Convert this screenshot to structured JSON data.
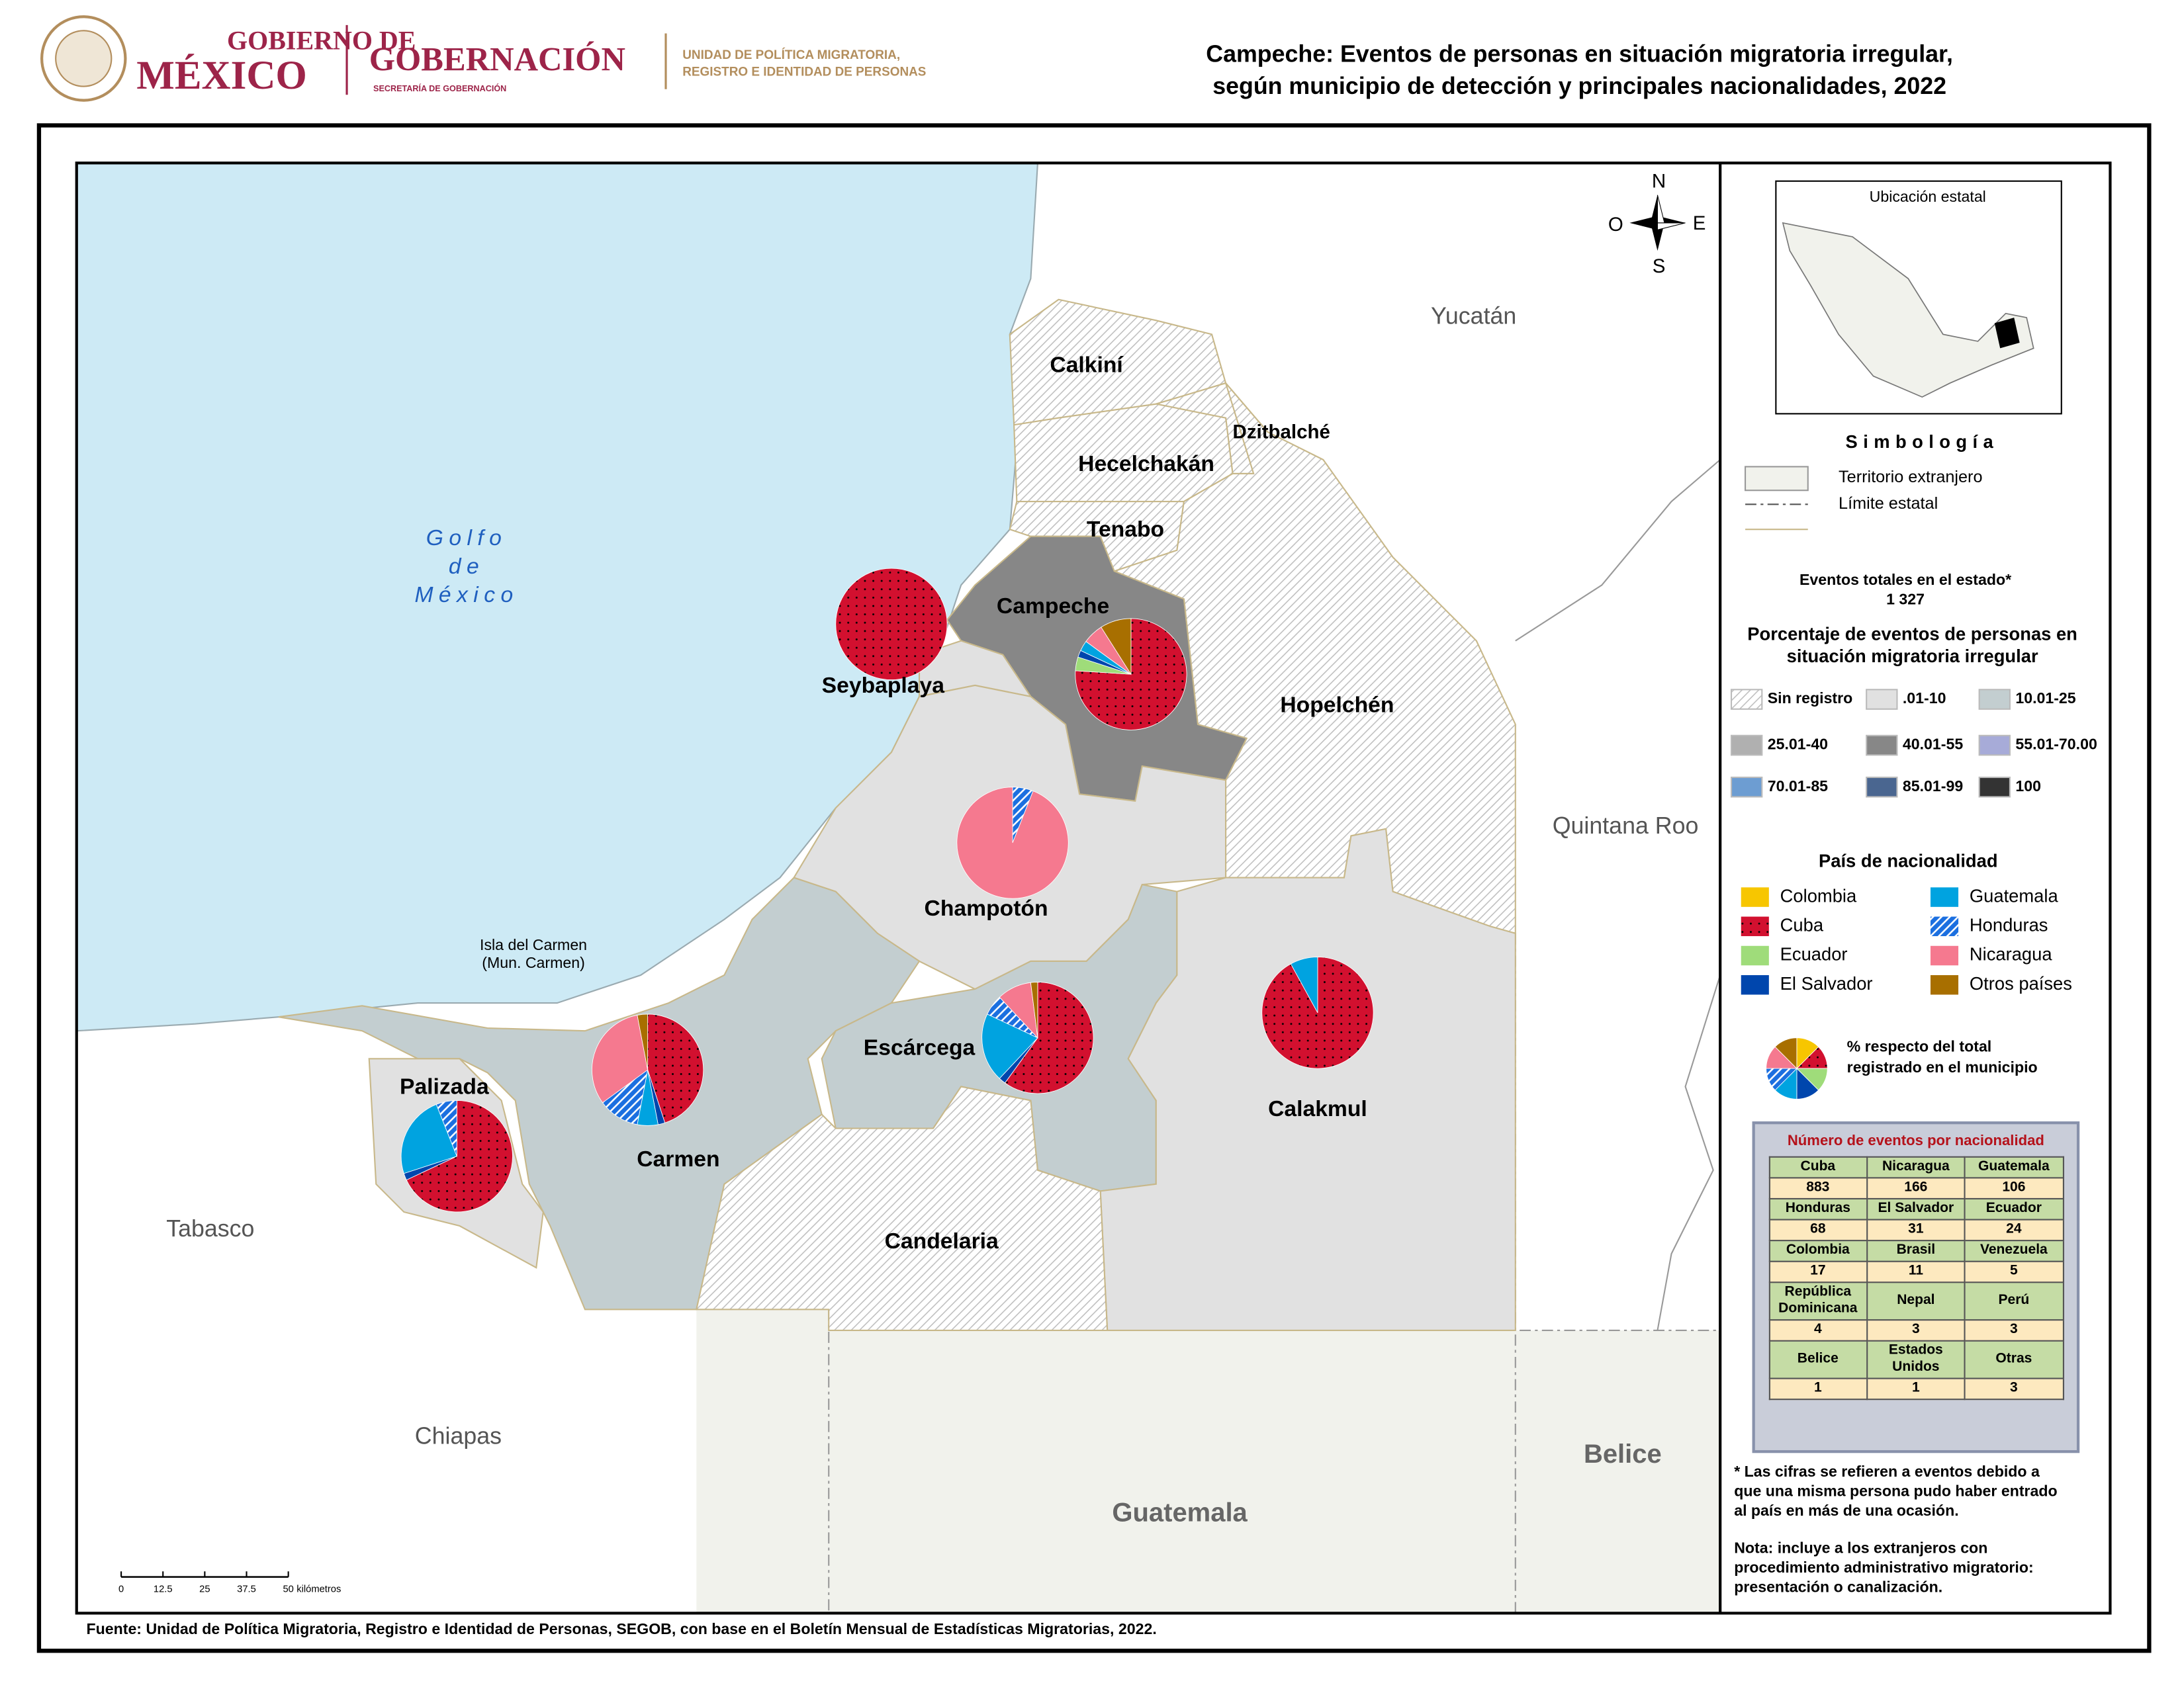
{
  "header": {
    "gov_line1": "GOBIERNO DE",
    "gov_line2": "MÉXICO",
    "ministry": "GOBERNACIÓN",
    "ministry_sub": "SECRETARÍA DE GOBERNACIÓN",
    "unit_line1": "UNIDAD DE POLÍTICA MIGRATORIA,",
    "unit_line2": "REGISTRO E IDENTIDAD DE PERSONAS",
    "title_line1": "Campeche: Eventos de personas en situación migratoria irregular,",
    "title_line2": "según municipio de detección y principales nacionalidades, 2022"
  },
  "map": {
    "sea_label": [
      "Golfo",
      "de",
      "México"
    ],
    "neighbors": [
      "Yucatán",
      "Quintana Roo",
      "Tabasco",
      "Chiapas",
      "Guatemala",
      "Belice"
    ],
    "island_label": [
      "Isla del Carmen",
      "(Mun. Carmen)"
    ],
    "compass": {
      "n": "N",
      "s": "S",
      "e": "E",
      "w": "O"
    },
    "scale": {
      "ticks": [
        0,
        12.5,
        25,
        37.5,
        50
      ],
      "unit": "kilómetros"
    },
    "municipalities": [
      {
        "name": "Calkiní",
        "class": "Sin registro"
      },
      {
        "name": "Dzitbalché",
        "class": "Sin registro"
      },
      {
        "name": "Hecelchakán",
        "class": "Sin registro"
      },
      {
        "name": "Tenabo",
        "class": "Sin registro"
      },
      {
        "name": "Hopelchén",
        "class": "Sin registro"
      },
      {
        "name": "Campeche",
        "class": "40.01-55",
        "pie": [
          0,
          76,
          4,
          2,
          3,
          0,
          6,
          9
        ]
      },
      {
        "name": "Seybaplaya",
        "class": ".01-10",
        "pie": [
          0,
          100,
          0,
          0,
          0,
          0,
          0,
          0
        ]
      },
      {
        "name": "Champotón",
        "class": ".01-10",
        "pie": [
          0,
          0,
          0,
          0,
          0,
          6,
          94,
          0
        ]
      },
      {
        "name": "Carmen",
        "class": "10.01-25",
        "pie": [
          0,
          45,
          0,
          2,
          6,
          12,
          32,
          3
        ]
      },
      {
        "name": "Palizada",
        "class": ".01-10",
        "pie": [
          0,
          68,
          0,
          2,
          24,
          6,
          0,
          0
        ]
      },
      {
        "name": "Escárcega",
        "class": "10.01-25",
        "pie": [
          0,
          60,
          0,
          2,
          20,
          6,
          10,
          2
        ]
      },
      {
        "name": "Calakmul",
        "class": ".01-10",
        "pie": [
          0,
          92,
          0,
          0,
          8,
          0,
          0,
          0
        ]
      },
      {
        "name": "Candelaria",
        "class": "Sin registro"
      }
    ]
  },
  "legend": {
    "inset_title": "Ubicación estatal",
    "symbology_title": "Simbología",
    "foreign": "Territorio extranjero",
    "state_limit": "Límite estatal",
    "total_label": "Eventos totales en el estado*",
    "total_value": "1 327",
    "classes_title": [
      "Porcentaje de eventos de personas en",
      "situación migratoria irregular"
    ],
    "classes": [
      {
        "label": "Sin registro",
        "pattern": "hatch",
        "color": "#bdbdbd"
      },
      {
        "label": ".01-10",
        "color": "#e1e1e1"
      },
      {
        "label": "10.01-25",
        "color": "#c3ced0"
      },
      {
        "label": "25.01-40",
        "color": "#b0b0b0"
      },
      {
        "label": "40.01-55",
        "color": "#878787"
      },
      {
        "label": "55.01-70.00",
        "color": "#a7abd8"
      },
      {
        "label": "70.01-85",
        "color": "#6d9dd2"
      },
      {
        "label": "85.01-99",
        "color": "#4a6690"
      },
      {
        "label": "100",
        "color": "#333333"
      }
    ],
    "nationality_title": "País de nacionalidad",
    "nationalities": [
      {
        "name": "Colombia",
        "color": "#f7c600"
      },
      {
        "name": "Cuba",
        "color": "#d2102f",
        "pattern": "dots"
      },
      {
        "name": "Ecuador",
        "color": "#9fdc7a"
      },
      {
        "name": "El Salvador",
        "color": "#0046ad"
      },
      {
        "name": "Guatemala",
        "color": "#00a3e0"
      },
      {
        "name": "Honduras",
        "color": "#1b6fe0",
        "pattern": "stripes"
      },
      {
        "name": "Nicaragua",
        "color": "#f5798f"
      },
      {
        "name": "Otros países",
        "color": "#a86f00"
      }
    ],
    "pie_note": [
      "% respecto del total",
      "registrado en el municipio"
    ]
  },
  "table": {
    "title": "Número de eventos por nacionalidad",
    "rows": [
      [
        "Cuba",
        "Nicaragua",
        "Guatemala"
      ],
      [
        883,
        166,
        106
      ],
      [
        "Honduras",
        "El Salvador",
        "Ecuador"
      ],
      [
        68,
        31,
        24
      ],
      [
        "Colombia",
        "Brasil",
        "Venezuela"
      ],
      [
        17,
        11,
        5
      ],
      [
        "República Dominicana",
        "Nepal",
        "Perú"
      ],
      [
        4,
        3,
        3
      ],
      [
        "Belice",
        "Estados Unidos",
        "Otras"
      ],
      [
        1,
        1,
        3
      ]
    ]
  },
  "notes": {
    "asterisk": [
      "* Las cifras se refieren a eventos debido a",
      "que una misma persona pudo haber entrado",
      "al país en más de una ocasión."
    ],
    "note": [
      "Nota: incluye a los extranjeros con",
      "procedimiento administrativo migratorio:",
      "presentación o canalización."
    ]
  },
  "source": "Fuente: Unidad de Política Migratoria, Registro e Identidad de Personas, SEGOB, con base en el Boletín Mensual de Estadísticas Migratorias, 2022."
}
